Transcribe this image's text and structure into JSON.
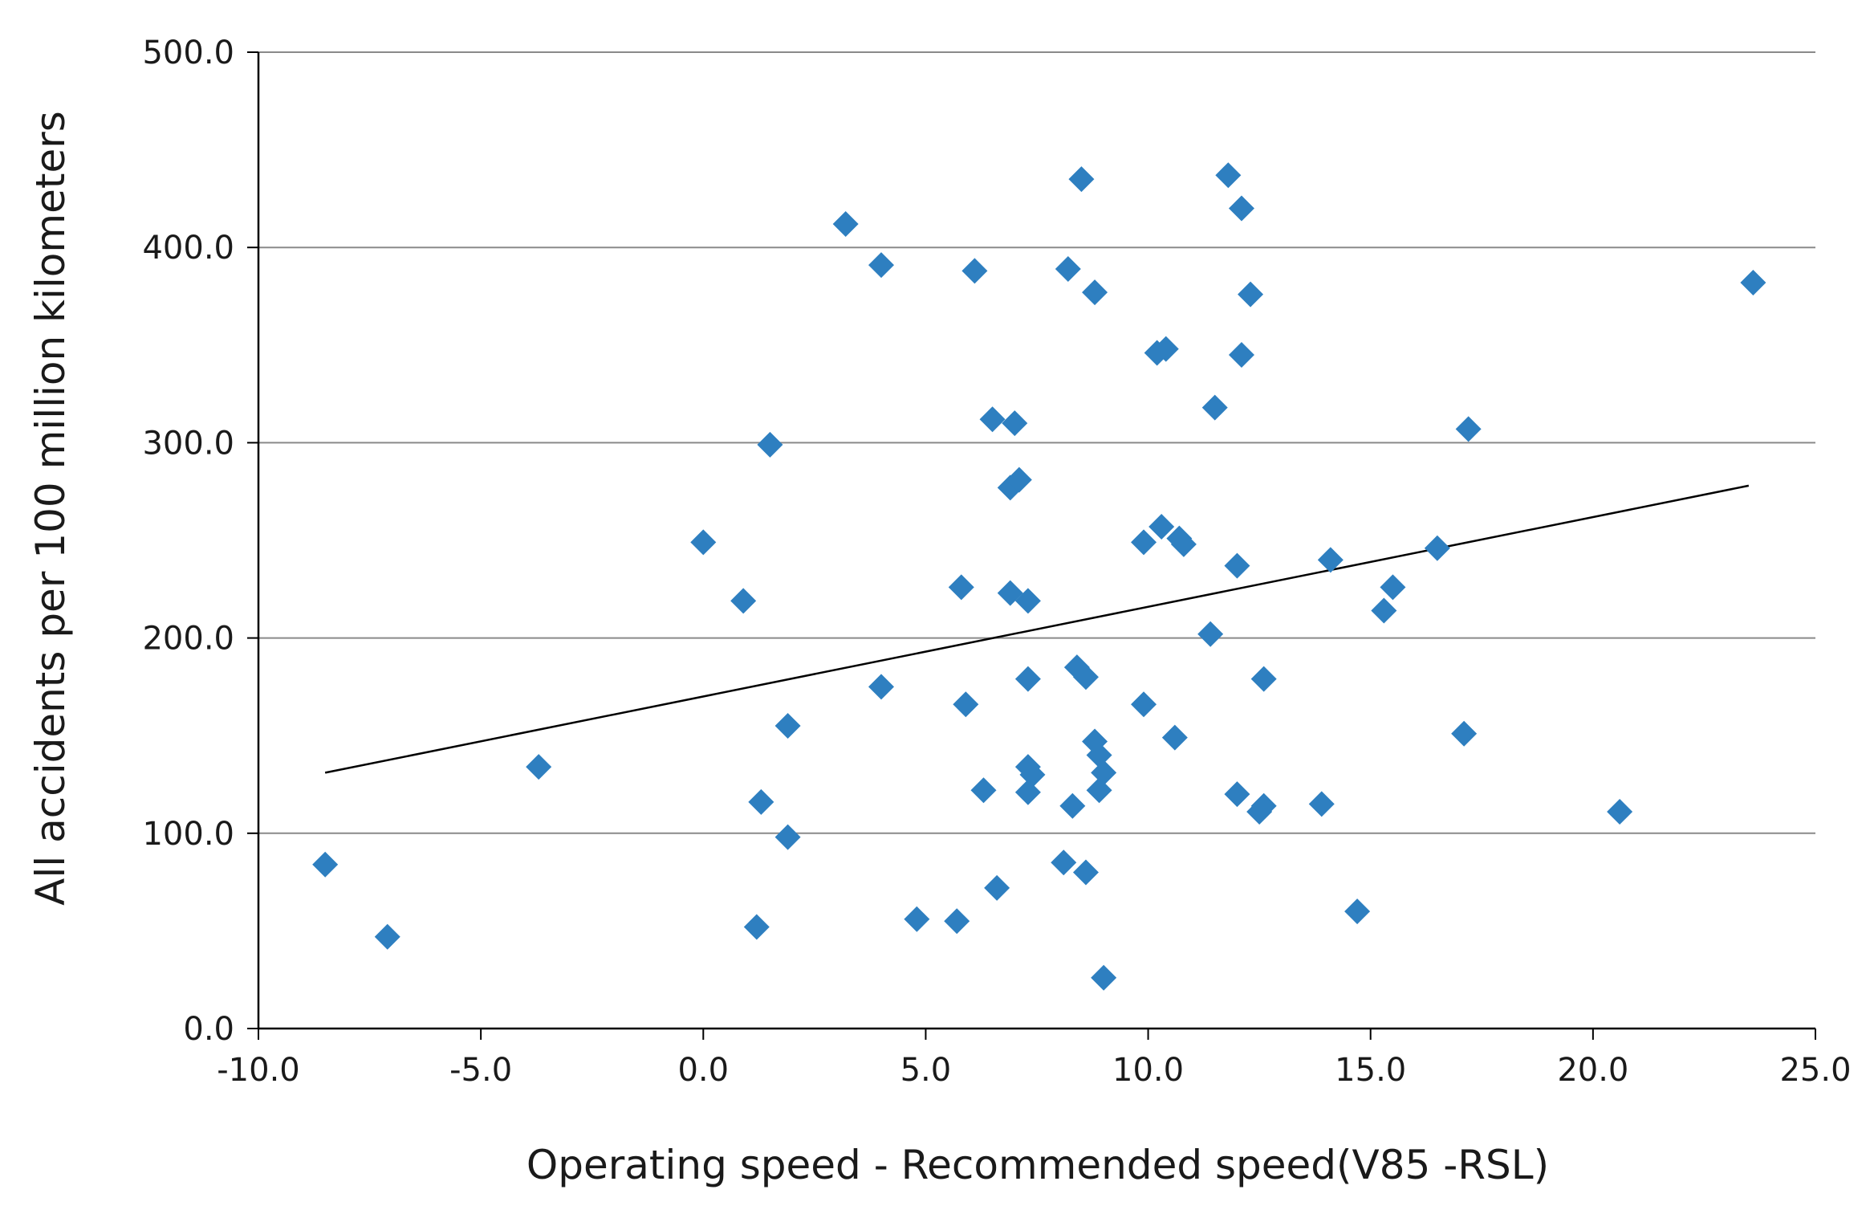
{
  "chart_data": {
    "type": "scatter",
    "xlabel": "Operating speed - Recommended speed(V85 -RSL)",
    "ylabel": "All accidents per 100 million kilometers",
    "xlim": [
      -10,
      25
    ],
    "ylim": [
      0,
      500
    ],
    "xticks": [
      "-10.0",
      "-5.0",
      "0.0",
      "5.0",
      "10.0",
      "15.0",
      "20.0",
      "25.0"
    ],
    "yticks": [
      "0.0",
      "100.0",
      "200.0",
      "300.0",
      "400.0",
      "500.0"
    ],
    "grid": "horizontal",
    "marker_color": "#2e7fc0",
    "trendline_color": "#000000",
    "trendline": [
      [
        -8.5,
        131
      ],
      [
        23.5,
        278
      ]
    ],
    "points": [
      [
        -8.5,
        84
      ],
      [
        -7.1,
        47
      ],
      [
        -3.7,
        134
      ],
      [
        0.0,
        249
      ],
      [
        0.9,
        219
      ],
      [
        1.2,
        52
      ],
      [
        1.3,
        116
      ],
      [
        1.5,
        299
      ],
      [
        1.9,
        98
      ],
      [
        1.9,
        155
      ],
      [
        3.2,
        412
      ],
      [
        4.0,
        391
      ],
      [
        4.0,
        175
      ],
      [
        4.8,
        56
      ],
      [
        5.7,
        55
      ],
      [
        5.8,
        226
      ],
      [
        5.9,
        166
      ],
      [
        6.1,
        388
      ],
      [
        6.3,
        122
      ],
      [
        6.5,
        312
      ],
      [
        6.6,
        72
      ],
      [
        6.9,
        277
      ],
      [
        6.9,
        223
      ],
      [
        7.0,
        310
      ],
      [
        7.1,
        281
      ],
      [
        7.3,
        219
      ],
      [
        7.3,
        179
      ],
      [
        7.3,
        134
      ],
      [
        7.3,
        121
      ],
      [
        7.4,
        130
      ],
      [
        8.1,
        85
      ],
      [
        8.2,
        389
      ],
      [
        8.3,
        114
      ],
      [
        8.4,
        185
      ],
      [
        8.5,
        435
      ],
      [
        8.6,
        180
      ],
      [
        8.6,
        80
      ],
      [
        8.8,
        377
      ],
      [
        8.8,
        147
      ],
      [
        8.9,
        122
      ],
      [
        8.9,
        140
      ],
      [
        9.0,
        26
      ],
      [
        9.0,
        131
      ],
      [
        9.9,
        249
      ],
      [
        9.9,
        166
      ],
      [
        10.2,
        346
      ],
      [
        10.3,
        257
      ],
      [
        10.4,
        348
      ],
      [
        10.6,
        149
      ],
      [
        10.7,
        251
      ],
      [
        10.8,
        248
      ],
      [
        11.4,
        202
      ],
      [
        11.5,
        318
      ],
      [
        11.8,
        437
      ],
      [
        12.0,
        237
      ],
      [
        12.0,
        120
      ],
      [
        12.1,
        420
      ],
      [
        12.1,
        345
      ],
      [
        12.3,
        376
      ],
      [
        12.5,
        111
      ],
      [
        12.6,
        179
      ],
      [
        12.6,
        114
      ],
      [
        13.9,
        115
      ],
      [
        14.1,
        240
      ],
      [
        14.7,
        60
      ],
      [
        15.3,
        214
      ],
      [
        15.5,
        226
      ],
      [
        16.5,
        246
      ],
      [
        17.1,
        151
      ],
      [
        17.2,
        307
      ],
      [
        20.6,
        111
      ],
      [
        23.6,
        382
      ]
    ]
  }
}
